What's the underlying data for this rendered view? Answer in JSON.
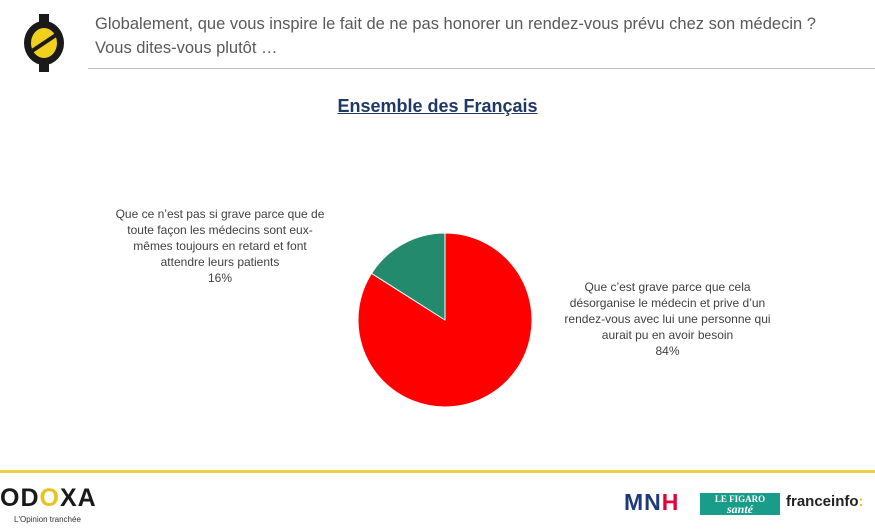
{
  "header": {
    "question_line1": "Globalement, que vous inspire le fait de ne pas honorer un rendez-vous prévu chez son médecin ?",
    "question_line2": "Vous dites-vous plutôt  …"
  },
  "subtitle": "Ensemble des Français",
  "colors": {
    "grave": "#ff0000",
    "pas_grave": "#238a6e",
    "accent": "#f0d040"
  },
  "chart_data": {
    "type": "pie",
    "title": "Ensemble des Français",
    "slices": [
      {
        "label": "Que ce n’est pas si grave parce que de toute façon les médecins sont eux-mêmes toujours en retard et font attendre leurs patients",
        "value": 16,
        "display": "16%",
        "color": "#238a6e"
      },
      {
        "label": "Que c’est grave parce que cela désorganise le médecin et prive d’un rendez-vous avec lui une personne qui aurait pu en avoir besoin",
        "value": 84,
        "display": "84%",
        "color": "#ff0000"
      }
    ]
  },
  "labels": {
    "left": {
      "lines": [
        "Que ce n’est pas si grave parce que de",
        "toute façon les médecins sont eux-",
        "mêmes toujours en retard et font",
        "attendre leurs patients"
      ],
      "pct": "16%"
    },
    "right": {
      "lines": [
        "Que c’est grave parce que cela",
        "désorganise le médecin et prive d’un",
        "rendez-vous avec lui une personne qui",
        "aurait pu en avoir besoin"
      ],
      "pct": "84%"
    }
  },
  "footer": {
    "brand_a": "OD",
    "brand_o": "O",
    "brand_b": "XA",
    "tagline": "L'Opinion tranchée",
    "partner1_a": "MN",
    "partner1_b": "H",
    "partner2_l1": "LE FIGARO",
    "partner2_l2": "santé",
    "partner3_a": "franceinfo",
    "partner3_b": ":"
  }
}
